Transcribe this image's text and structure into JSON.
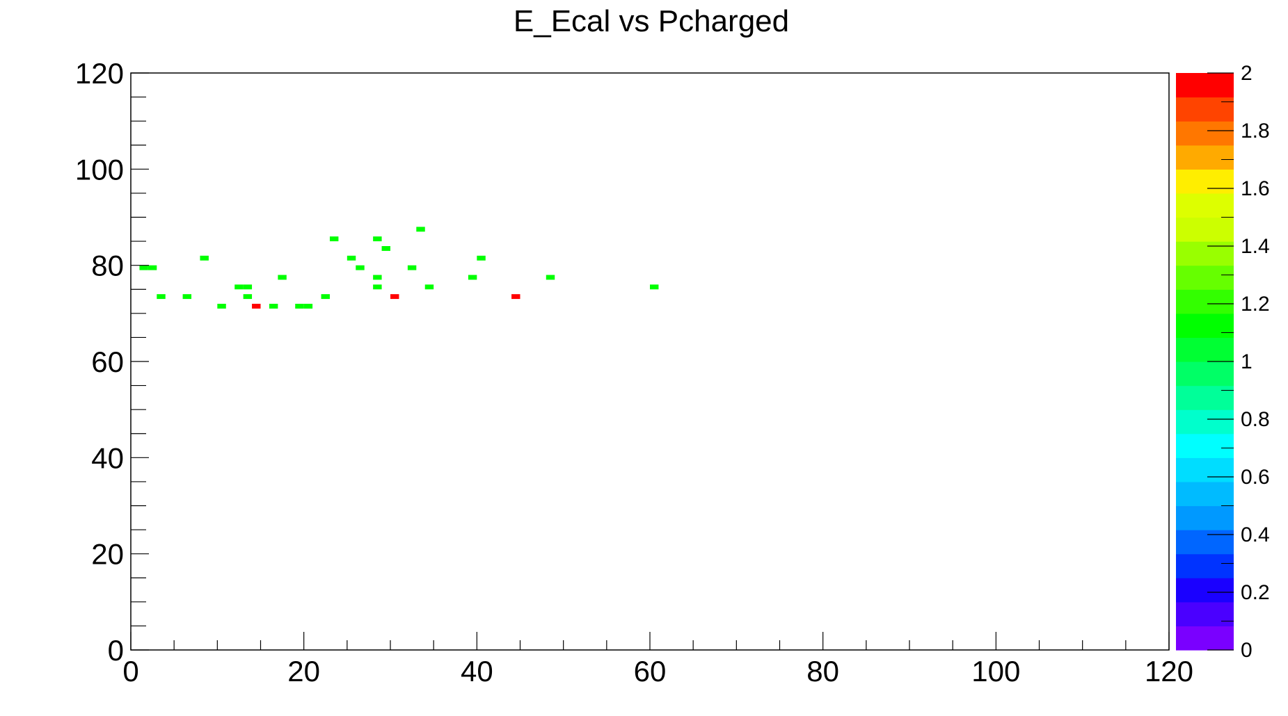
{
  "chart_data": {
    "type": "heatmap",
    "title": "E_Ecal vs Pcharged",
    "xlabel": "",
    "ylabel": "",
    "xlim": [
      0,
      120
    ],
    "ylim": [
      0,
      120
    ],
    "x_ticks": [
      0,
      20,
      40,
      60,
      80,
      100,
      120
    ],
    "y_ticks": [
      0,
      20,
      40,
      60,
      80,
      100,
      120
    ],
    "bin_width": 1,
    "grid": false,
    "colorbar": {
      "min": 0,
      "max": 2,
      "ticks": [
        "0",
        "0.2",
        "0.4",
        "0.6",
        "0.8",
        "1",
        "1.2",
        "1.4",
        "1.6",
        "1.8",
        "2"
      ],
      "colors": [
        "#7a00ff",
        "#4a00ff",
        "#1a00ff",
        "#0033ff",
        "#0066ff",
        "#0099ff",
        "#00bbff",
        "#00ddff",
        "#00ffff",
        "#00ffcc",
        "#00ff99",
        "#00ff66",
        "#00ff33",
        "#00ff00",
        "#33ff00",
        "#66ff00",
        "#99ff00",
        "#ccff00",
        "#ddff00",
        "#ffee00",
        "#ffaa00",
        "#ff7700",
        "#ff4400",
        "#ff0000"
      ]
    },
    "cell_colors": {
      "1": "#00ff00",
      "2": "#ff0000"
    },
    "points": [
      {
        "x": 1.5,
        "y": 79,
        "count": 1
      },
      {
        "x": 2.5,
        "y": 79,
        "count": 1
      },
      {
        "x": 3.5,
        "y": 73,
        "count": 1
      },
      {
        "x": 6.5,
        "y": 73,
        "count": 1
      },
      {
        "x": 8.5,
        "y": 81,
        "count": 1
      },
      {
        "x": 10.5,
        "y": 71,
        "count": 1
      },
      {
        "x": 12.5,
        "y": 75,
        "count": 1
      },
      {
        "x": 13.5,
        "y": 75,
        "count": 1
      },
      {
        "x": 13.5,
        "y": 73,
        "count": 1
      },
      {
        "x": 14.5,
        "y": 71,
        "count": 2
      },
      {
        "x": 16.5,
        "y": 71,
        "count": 1
      },
      {
        "x": 17.5,
        "y": 77,
        "count": 1
      },
      {
        "x": 19.5,
        "y": 71,
        "count": 1
      },
      {
        "x": 20.5,
        "y": 71,
        "count": 1
      },
      {
        "x": 22.5,
        "y": 73,
        "count": 1
      },
      {
        "x": 23.5,
        "y": 85,
        "count": 1
      },
      {
        "x": 25.5,
        "y": 81,
        "count": 1
      },
      {
        "x": 26.5,
        "y": 79,
        "count": 1
      },
      {
        "x": 28.5,
        "y": 85,
        "count": 1
      },
      {
        "x": 28.5,
        "y": 77,
        "count": 1
      },
      {
        "x": 28.5,
        "y": 75,
        "count": 1
      },
      {
        "x": 29.5,
        "y": 83,
        "count": 1
      },
      {
        "x": 30.5,
        "y": 73,
        "count": 2
      },
      {
        "x": 32.5,
        "y": 79,
        "count": 1
      },
      {
        "x": 33.5,
        "y": 87,
        "count": 1
      },
      {
        "x": 34.5,
        "y": 75,
        "count": 1
      },
      {
        "x": 39.5,
        "y": 77,
        "count": 1
      },
      {
        "x": 40.5,
        "y": 81,
        "count": 1
      },
      {
        "x": 44.5,
        "y": 73,
        "count": 2
      },
      {
        "x": 48.5,
        "y": 77,
        "count": 1
      },
      {
        "x": 60.5,
        "y": 75,
        "count": 1
      }
    ]
  }
}
